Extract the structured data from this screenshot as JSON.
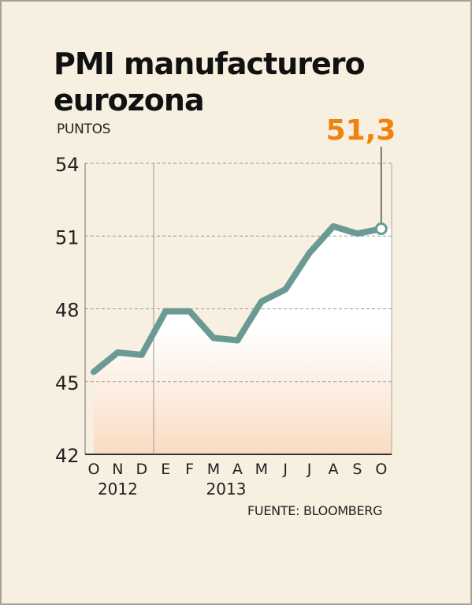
{
  "title": {
    "line1": "PMI manufacturero",
    "line2": "eurozona"
  },
  "units": "PUNTOS",
  "source": "FUENTE: BLOOMBERG",
  "colors": {
    "line": "#6b9a94",
    "highlight": "#f0820f",
    "background": "#f7efe0"
  },
  "chart_data": {
    "type": "line",
    "ylim": [
      42,
      54
    ],
    "yticks": [
      42,
      45,
      48,
      51,
      54
    ],
    "ytick_labels": [
      "42",
      "45",
      "48",
      "51",
      "54"
    ],
    "categories": [
      "O",
      "N",
      "D",
      "E",
      "F",
      "M",
      "A",
      "M",
      "J",
      "J",
      "A",
      "S",
      "O"
    ],
    "year_labels": [
      {
        "label": "2012",
        "from": 0,
        "to": 2
      },
      {
        "label": "2013",
        "from": 3,
        "to": 12
      }
    ],
    "values": [
      45.4,
      46.2,
      46.1,
      47.9,
      47.9,
      46.8,
      46.7,
      48.3,
      48.8,
      50.3,
      51.4,
      51.1,
      51.3
    ],
    "grid": true,
    "annotation": {
      "index": 12,
      "text": "51,3"
    }
  }
}
